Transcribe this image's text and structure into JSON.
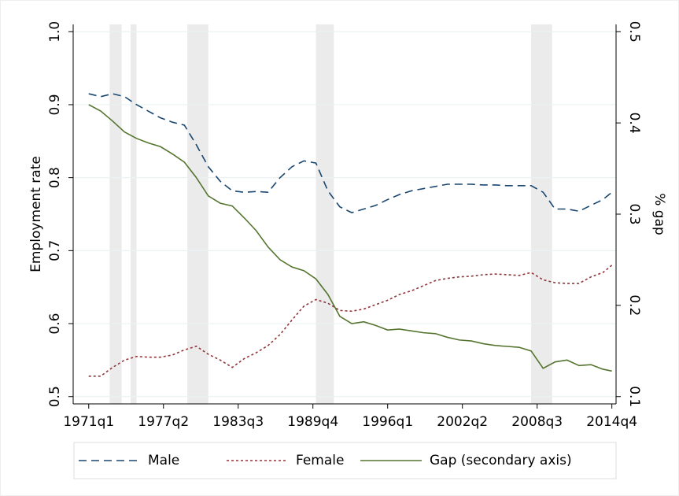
{
  "chart_data": {
    "type": "line",
    "y_label": "Employment rate",
    "y2_label": "% gap",
    "x": [
      1971,
      1972,
      1973,
      1974,
      1975,
      1976,
      1977,
      1978,
      1979,
      1980,
      1981,
      1982,
      1983,
      1984,
      1985,
      1986,
      1987,
      1988,
      1989,
      1990,
      1991,
      1992,
      1993,
      1994,
      1995,
      1996,
      1997,
      1998,
      1999,
      2000,
      2001,
      2002,
      2003,
      2004,
      2005,
      2006,
      2007,
      2008,
      2009,
      2010,
      2011,
      2012,
      2013,
      2014,
      2014.75
    ],
    "series": [
      {
        "name": "Male",
        "color": "#1a476f",
        "dash": "dashed",
        "values": [
          0.915,
          0.911,
          0.915,
          0.911,
          0.9,
          0.891,
          0.882,
          0.876,
          0.872,
          0.845,
          0.815,
          0.795,
          0.782,
          0.78,
          0.781,
          0.78,
          0.8,
          0.815,
          0.823,
          0.82,
          0.782,
          0.76,
          0.752,
          0.757,
          0.762,
          0.77,
          0.777,
          0.782,
          0.785,
          0.788,
          0.791,
          0.791,
          0.791,
          0.79,
          0.79,
          0.789,
          0.789,
          0.789,
          0.78,
          0.757,
          0.757,
          0.754,
          0.762,
          0.77,
          0.78
        ]
      },
      {
        "name": "Female",
        "color": "#90353b",
        "dash": "dotted",
        "values": [
          0.528,
          0.528,
          0.54,
          0.55,
          0.555,
          0.554,
          0.554,
          0.557,
          0.564,
          0.569,
          0.558,
          0.55,
          0.54,
          0.552,
          0.56,
          0.57,
          0.585,
          0.605,
          0.624,
          0.633,
          0.628,
          0.618,
          0.617,
          0.62,
          0.626,
          0.632,
          0.64,
          0.645,
          0.652,
          0.659,
          0.662,
          0.664,
          0.665,
          0.667,
          0.668,
          0.667,
          0.666,
          0.67,
          0.66,
          0.656,
          0.655,
          0.655,
          0.664,
          0.67,
          0.68
        ]
      },
      {
        "name": "Gap (secondary axis)",
        "color": "#55752f",
        "dash": "solid",
        "axis": "y2",
        "values": [
          0.42,
          0.413,
          0.402,
          0.39,
          0.383,
          0.378,
          0.374,
          0.366,
          0.357,
          0.34,
          0.32,
          0.312,
          0.309,
          0.296,
          0.282,
          0.264,
          0.25,
          0.242,
          0.238,
          0.229,
          0.212,
          0.188,
          0.18,
          0.182,
          0.178,
          0.173,
          0.174,
          0.172,
          0.17,
          0.169,
          0.165,
          0.162,
          0.161,
          0.158,
          0.156,
          0.155,
          0.154,
          0.15,
          0.131,
          0.138,
          0.14,
          0.134,
          0.135,
          0.13,
          0.128
        ]
      }
    ],
    "shaded_periods": [
      [
        1972.75,
        1973.75
      ],
      [
        1974.5,
        1975
      ],
      [
        1979.25,
        1981
      ],
      [
        1990,
        1991.5
      ],
      [
        2008,
        2009.75
      ]
    ],
    "shade_color": "#ebebeb",
    "xlim": [
      1969.7,
      2015.1
    ],
    "xticks": [
      {
        "value": 1971,
        "label": "1971q1"
      },
      {
        "value": 1977.25,
        "label": "1977q2"
      },
      {
        "value": 1983.5,
        "label": "1983q3"
      },
      {
        "value": 1989.75,
        "label": "1989q4"
      },
      {
        "value": 1996,
        "label": "1996q1"
      },
      {
        "value": 2002.25,
        "label": "2002q2"
      },
      {
        "value": 2008.5,
        "label": "2008q3"
      },
      {
        "value": 2014.75,
        "label": "2014q4"
      }
    ],
    "ylim": [
      0.49,
      1.01
    ],
    "yticks": [
      0.5,
      0.6,
      0.7,
      0.8,
      0.9,
      {
        "value": 1.0,
        "label": "1.0"
      }
    ],
    "y2lim": [
      0.092,
      0.508
    ],
    "y2ticks": [
      0.1,
      0.2,
      0.3,
      0.4,
      0.5
    ],
    "grid": true,
    "legend": "bottom"
  }
}
